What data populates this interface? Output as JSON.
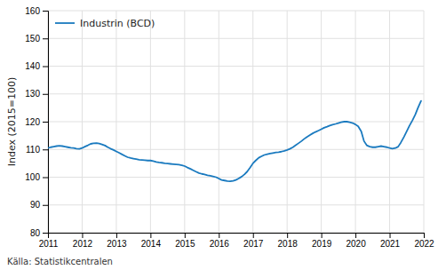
{
  "chart_data": {
    "type": "line",
    "ylabel": "Index (2015=100)",
    "source": "Källa: Statistikcentralen",
    "x": [
      2011.0,
      2011.08,
      2011.17,
      2011.25,
      2011.33,
      2011.42,
      2011.5,
      2011.58,
      2011.67,
      2011.75,
      2011.83,
      2011.92,
      2012.0,
      2012.08,
      2012.17,
      2012.25,
      2012.33,
      2012.42,
      2012.5,
      2012.58,
      2012.67,
      2012.75,
      2012.83,
      2012.92,
      2013.0,
      2013.08,
      2013.17,
      2013.25,
      2013.33,
      2013.42,
      2013.5,
      2013.58,
      2013.67,
      2013.75,
      2013.83,
      2013.92,
      2014.0,
      2014.08,
      2014.17,
      2014.25,
      2014.33,
      2014.42,
      2014.5,
      2014.58,
      2014.67,
      2014.75,
      2014.83,
      2014.92,
      2015.0,
      2015.08,
      2015.17,
      2015.25,
      2015.33,
      2015.42,
      2015.5,
      2015.58,
      2015.67,
      2015.75,
      2015.83,
      2015.92,
      2016.0,
      2016.08,
      2016.17,
      2016.25,
      2016.33,
      2016.42,
      2016.5,
      2016.58,
      2016.67,
      2016.75,
      2016.83,
      2016.92,
      2017.0,
      2017.08,
      2017.17,
      2017.25,
      2017.33,
      2017.42,
      2017.5,
      2017.58,
      2017.67,
      2017.75,
      2017.83,
      2017.92,
      2018.0,
      2018.08,
      2018.17,
      2018.25,
      2018.33,
      2018.42,
      2018.5,
      2018.58,
      2018.67,
      2018.75,
      2018.83,
      2018.92,
      2019.0,
      2019.08,
      2019.17,
      2019.25,
      2019.33,
      2019.42,
      2019.5,
      2019.58,
      2019.67,
      2019.75,
      2019.83,
      2019.92,
      2020.0,
      2020.08,
      2020.17,
      2020.25,
      2020.33,
      2020.42,
      2020.5,
      2020.58,
      2020.67,
      2020.75,
      2020.83,
      2020.92,
      2021.0,
      2021.08,
      2021.17,
      2021.25,
      2021.33,
      2021.42,
      2021.5,
      2021.58,
      2021.67,
      2021.75,
      2021.83,
      2021.92
    ],
    "series": [
      {
        "name": "Industrin (BCD)",
        "color": "#1a7abf",
        "values": [
          110.5,
          110.8,
          111.0,
          111.2,
          111.3,
          111.2,
          111.0,
          110.8,
          110.6,
          110.5,
          110.3,
          110.2,
          110.5,
          111.0,
          111.5,
          112.0,
          112.2,
          112.3,
          112.1,
          111.8,
          111.4,
          110.8,
          110.3,
          109.8,
          109.3,
          108.8,
          108.2,
          107.7,
          107.2,
          106.9,
          106.7,
          106.5,
          106.3,
          106.2,
          106.1,
          106.0,
          106.0,
          105.8,
          105.5,
          105.3,
          105.2,
          105.0,
          104.9,
          104.8,
          104.7,
          104.6,
          104.5,
          104.3,
          104.0,
          103.5,
          103.0,
          102.5,
          102.0,
          101.5,
          101.2,
          101.0,
          100.7,
          100.5,
          100.3,
          100.0,
          99.5,
          99.0,
          98.8,
          98.6,
          98.5,
          98.7,
          99.0,
          99.5,
          100.2,
          101.0,
          102.0,
          103.5,
          105.0,
          106.0,
          107.0,
          107.5,
          108.0,
          108.3,
          108.5,
          108.7,
          108.9,
          109.0,
          109.2,
          109.5,
          109.8,
          110.2,
          110.8,
          111.5,
          112.2,
          113.0,
          113.8,
          114.5,
          115.2,
          115.8,
          116.3,
          116.8,
          117.3,
          117.8,
          118.2,
          118.6,
          118.9,
          119.2,
          119.5,
          119.8,
          120.0,
          120.0,
          119.8,
          119.5,
          119.0,
          118.3,
          116.5,
          113.0,
          111.5,
          111.0,
          110.8,
          110.8,
          111.0,
          111.2,
          111.0,
          110.8,
          110.5,
          110.3,
          110.5,
          111.0,
          112.5,
          114.5,
          116.5,
          118.5,
          120.5,
          122.5,
          125.0,
          127.5
        ]
      }
    ],
    "xlim": [
      2011.0,
      2022.0
    ],
    "xticks": [
      2011,
      2012,
      2013,
      2014,
      2015,
      2016,
      2017,
      2018,
      2019,
      2020,
      2021,
      2022
    ],
    "ylim": [
      80,
      160
    ],
    "yticks": [
      80,
      90,
      100,
      110,
      120,
      130,
      140,
      150,
      160
    ],
    "grid": true,
    "legend": "upper left"
  }
}
